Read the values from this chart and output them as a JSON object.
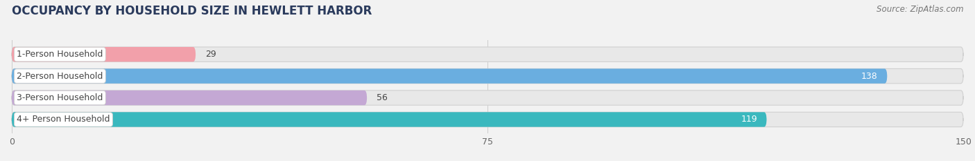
{
  "title": "OCCUPANCY BY HOUSEHOLD SIZE IN HEWLETT HARBOR",
  "source": "Source: ZipAtlas.com",
  "categories": [
    "1-Person Household",
    "2-Person Household",
    "3-Person Household",
    "4+ Person Household"
  ],
  "values": [
    29,
    138,
    56,
    119
  ],
  "bar_colors": [
    "#f2a0aa",
    "#6aaee0",
    "#c4a8d4",
    "#3ab8be"
  ],
  "xlim": [
    0,
    150
  ],
  "xticks": [
    0,
    75,
    150
  ],
  "background_color": "#f2f2f2",
  "bar_bg_color": "#e2e2e2",
  "title_fontsize": 12,
  "source_fontsize": 8.5,
  "label_fontsize": 9,
  "value_fontsize": 9,
  "tick_fontsize": 9,
  "bar_height": 0.68,
  "n_bars": 4
}
